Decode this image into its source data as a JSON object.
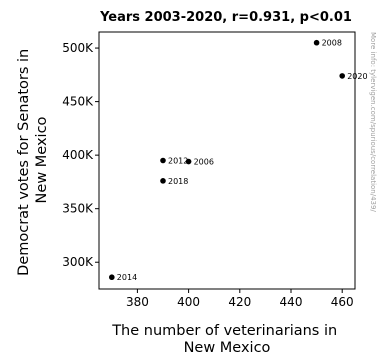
{
  "chart_data": {
    "type": "scatter",
    "title": "Years 2003-2020, r=0.931, p<0.01",
    "xlabel_lines": [
      "The number of veterinarians in",
      "New Mexico"
    ],
    "ylabel_lines": [
      "Democrat votes for Senators in",
      "New Mexico"
    ],
    "xlim": [
      365,
      465
    ],
    "ylim": [
      275000,
      515000
    ],
    "x_ticks": [
      380,
      400,
      420,
      440,
      460
    ],
    "x_tick_labels": [
      "380",
      "400",
      "420",
      "440",
      "460"
    ],
    "y_ticks": [
      300000,
      350000,
      400000,
      450000,
      500000
    ],
    "y_tick_labels": [
      "300K",
      "350K",
      "400K",
      "450K",
      "500K"
    ],
    "grid": false,
    "marker_color": "#000000",
    "points": [
      {
        "label": "2008",
        "x": 450,
        "y": 505000
      },
      {
        "label": "2020",
        "x": 460,
        "y": 474000
      },
      {
        "label": "2012",
        "x": 390,
        "y": 395000
      },
      {
        "label": "2006",
        "x": 400,
        "y": 394000
      },
      {
        "label": "2018",
        "x": 390,
        "y": 376000
      },
      {
        "label": "2014",
        "x": 370,
        "y": 286000
      }
    ]
  },
  "watermark": "More info: tylervigen.com/spurious/correlation/439/"
}
